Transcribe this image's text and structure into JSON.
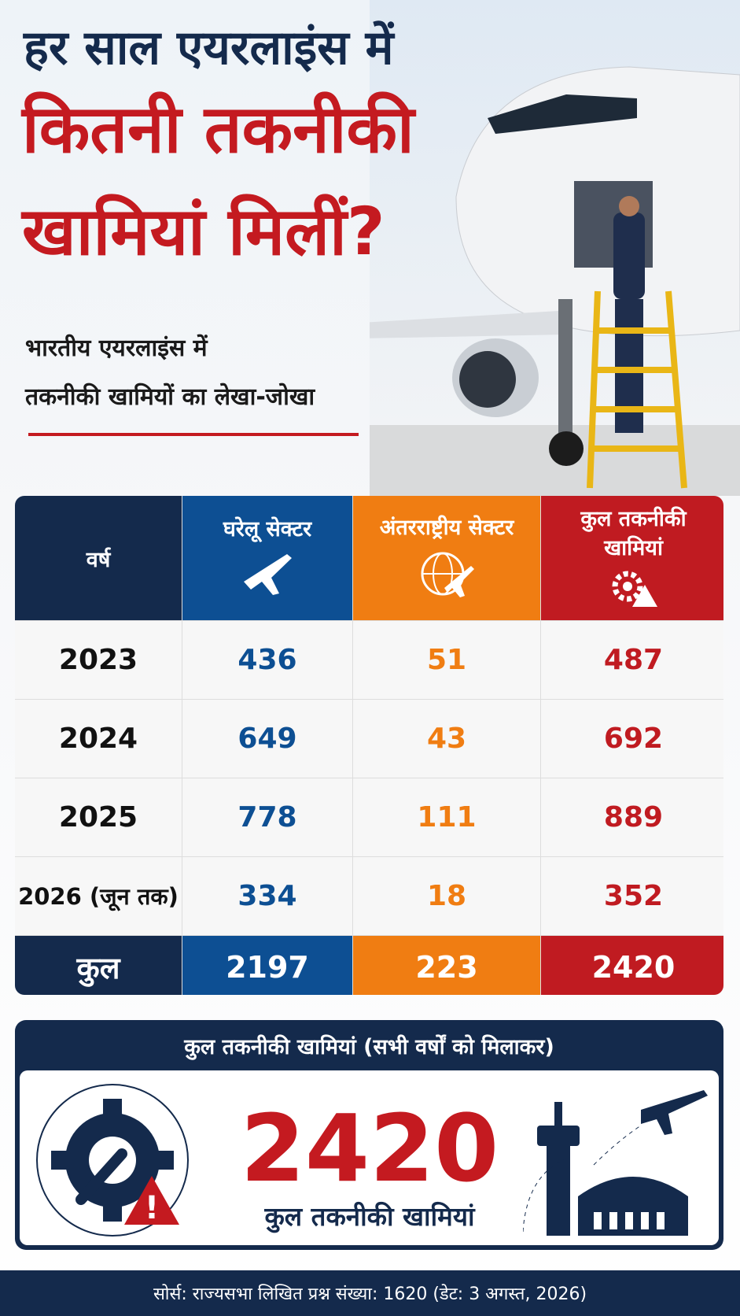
{
  "header": {
    "title_lines": [
      "हर साल एयरलाइंस में",
      "कितनी तकनीकी",
      "खामियां मिलीं?"
    ],
    "subtitle_lines": [
      "भारतीय एयरलाइंस में",
      "तकनीकी खामियों का लेखा-जोखा"
    ]
  },
  "table": {
    "columns": [
      "वर्ष",
      "घरेलू सेक्टर",
      "अंतरराष्ट्रीय सेक्टर",
      "कुल तकनीकी खामियां"
    ],
    "rows": [
      [
        "2023",
        436,
        51,
        487
      ],
      [
        "2024",
        649,
        43,
        692
      ],
      [
        "2025",
        778,
        111,
        889
      ],
      [
        "2026 (जून तक)",
        334,
        18,
        352
      ]
    ],
    "total": [
      "कुल",
      2197,
      223,
      2420
    ]
  },
  "summary": {
    "heading": "कुल तकनीकी खामियां (सभी वर्षों को मिलाकर)",
    "value": 2420,
    "caption": "कुल तकनीकी खामियां"
  },
  "source": "सोर्स: राज्यसभा लिखित प्रश्न संख्या: 1620 (डेट: 3 अगस्त, 2026)"
}
